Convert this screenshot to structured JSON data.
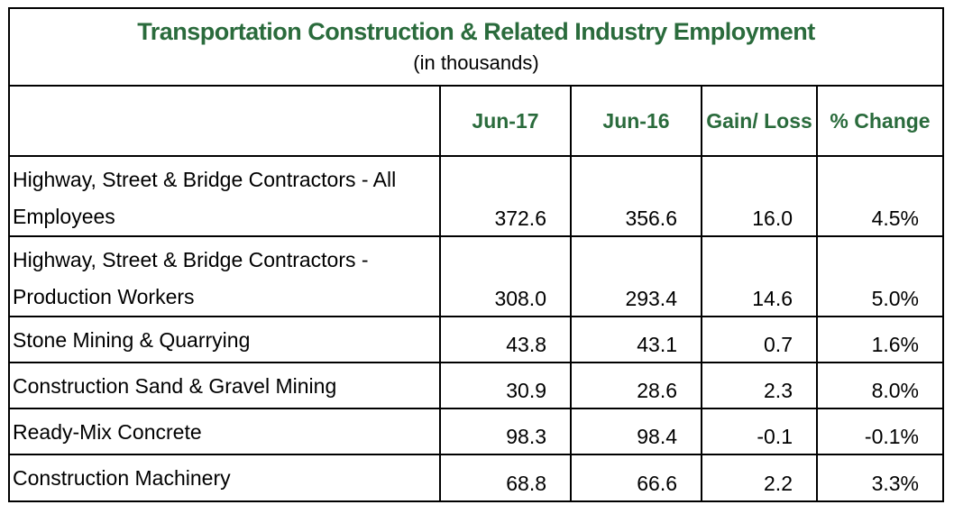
{
  "title": "Transportation Construction  & Related Industry Employment",
  "subtitle": "(in thousands)",
  "colors": {
    "header_green": "#2a6b3c"
  },
  "chart_data": {
    "type": "table",
    "title": "Transportation Construction  & Related Industry Employment",
    "subtitle": "(in thousands)",
    "columns": [
      "",
      "Jun-17",
      "Jun-16",
      "Gain/ Loss",
      "% Change"
    ],
    "rows": [
      {
        "label": "Highway, Street & Bridge Contractors - All Employees",
        "jun17": "372.6",
        "jun16": "356.6",
        "gain": "16.0",
        "pct": "4.5%"
      },
      {
        "label": "Highway, Street & Bridge Contractors - Production Workers",
        "jun17": "308.0",
        "jun16": "293.4",
        "gain": "14.6",
        "pct": "5.0%"
      },
      {
        "label": "Stone Mining & Quarrying",
        "jun17": "43.8",
        "jun16": "43.1",
        "gain": "0.7",
        "pct": "1.6%"
      },
      {
        "label": "Construction Sand & Gravel Mining",
        "jun17": "30.9",
        "jun16": "28.6",
        "gain": "2.3",
        "pct": "8.0%"
      },
      {
        "label": "Ready-Mix Concrete",
        "jun17": "98.3",
        "jun16": "98.4",
        "gain": "-0.1",
        "pct": "-0.1%"
      },
      {
        "label": "Construction Machinery",
        "jun17": "68.8",
        "jun16": "66.6",
        "gain": "2.2",
        "pct": "3.3%"
      }
    ]
  }
}
